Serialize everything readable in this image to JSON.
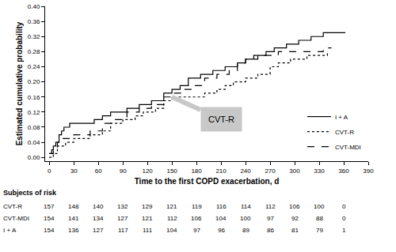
{
  "chart_data": {
    "type": "line",
    "x_label": "Time to the first COPD exacerbation, d",
    "y_label": "Estimated cumulative probability",
    "xlim": [
      -5,
      390
    ],
    "xticks": [
      0,
      30,
      60,
      90,
      120,
      150,
      180,
      210,
      240,
      270,
      300,
      330,
      360,
      390
    ],
    "ylim": [
      -0.01,
      0.4
    ],
    "yticks": [
      {
        "value": 0,
        "label": "0.00"
      },
      {
        "value": 0.04,
        "label": "0.04"
      },
      {
        "value": 0.08,
        "label": "0.08"
      },
      {
        "value": 0.12,
        "label": "0.12"
      },
      {
        "value": 0.16,
        "label": "0.16"
      },
      {
        "value": 0.2,
        "label": "0.20"
      },
      {
        "value": 0.24,
        "label": "0.24"
      },
      {
        "value": 0.28,
        "label": "0.28"
      },
      {
        "value": 0.32,
        "label": "0.32"
      },
      {
        "value": 0.36,
        "label": "0.36"
      },
      {
        "value": 0.4,
        "label": "0.40"
      }
    ],
    "grid": false,
    "legend": "bottom right",
    "series": [
      {
        "name": "I + A",
        "color": "#000000",
        "line_style": "solid",
        "x": [
          0,
          3,
          5,
          8,
          12,
          15,
          18,
          25,
          55,
          65,
          75,
          95,
          110,
          125,
          140,
          150,
          160,
          170,
          185,
          200,
          215,
          230,
          240,
          255,
          265,
          275,
          290,
          305,
          320,
          335,
          362
        ],
        "values": [
          0.01,
          0.02,
          0.03,
          0.04,
          0.06,
          0.07,
          0.08,
          0.09,
          0.1,
          0.11,
          0.12,
          0.13,
          0.14,
          0.15,
          0.17,
          0.18,
          0.19,
          0.21,
          0.22,
          0.23,
          0.24,
          0.25,
          0.26,
          0.27,
          0.28,
          0.29,
          0.3,
          0.31,
          0.32,
          0.33,
          0.33
        ]
      },
      {
        "name": "CVT-R",
        "color": "#000000",
        "line_style": "dotted",
        "x": [
          0,
          5,
          10,
          20,
          30,
          50,
          65,
          75,
          90,
          105,
          115,
          130,
          140,
          150,
          190,
          205,
          215,
          225,
          240,
          255,
          270,
          280,
          295,
          315,
          340
        ],
        "values": [
          0.0,
          0.01,
          0.03,
          0.04,
          0.05,
          0.06,
          0.07,
          0.09,
          0.1,
          0.11,
          0.12,
          0.13,
          0.15,
          0.16,
          0.17,
          0.18,
          0.19,
          0.2,
          0.21,
          0.22,
          0.24,
          0.25,
          0.26,
          0.27,
          0.28
        ]
      },
      {
        "name": "CVT-MDI",
        "color": "#000000",
        "line_style": "dashed",
        "x": [
          0,
          5,
          10,
          15,
          30,
          50,
          65,
          80,
          95,
          110,
          125,
          140,
          150,
          165,
          175,
          190,
          205,
          220,
          230,
          240,
          250,
          280,
          335,
          345
        ],
        "values": [
          0.01,
          0.02,
          0.04,
          0.05,
          0.06,
          0.07,
          0.09,
          0.1,
          0.12,
          0.13,
          0.14,
          0.16,
          0.17,
          0.18,
          0.19,
          0.21,
          0.22,
          0.23,
          0.25,
          0.26,
          0.27,
          0.28,
          0.29,
          0.29
        ]
      }
    ],
    "annotations": [
      {
        "text": "CVT-R",
        "x": 150,
        "y": 0.16
      }
    ],
    "risk_table": {
      "title": "Subjects of risk",
      "times": [
        0,
        30,
        60,
        90,
        120,
        150,
        180,
        210,
        240,
        270,
        300,
        330,
        360
      ],
      "rows": [
        {
          "name": "CVT-R",
          "values": [
            157,
            148,
            140,
            132,
            129,
            121,
            119,
            116,
            114,
            112,
            106,
            100,
            0
          ]
        },
        {
          "name": "CVT-MDI",
          "values": [
            154,
            141,
            134,
            127,
            121,
            112,
            106,
            104,
            100,
            97,
            92,
            88,
            0
          ]
        },
        {
          "name": "I + A",
          "values": [
            154,
            136,
            127,
            117,
            111,
            104,
            97,
            96,
            89,
            86,
            81,
            79,
            1
          ]
        }
      ]
    }
  }
}
